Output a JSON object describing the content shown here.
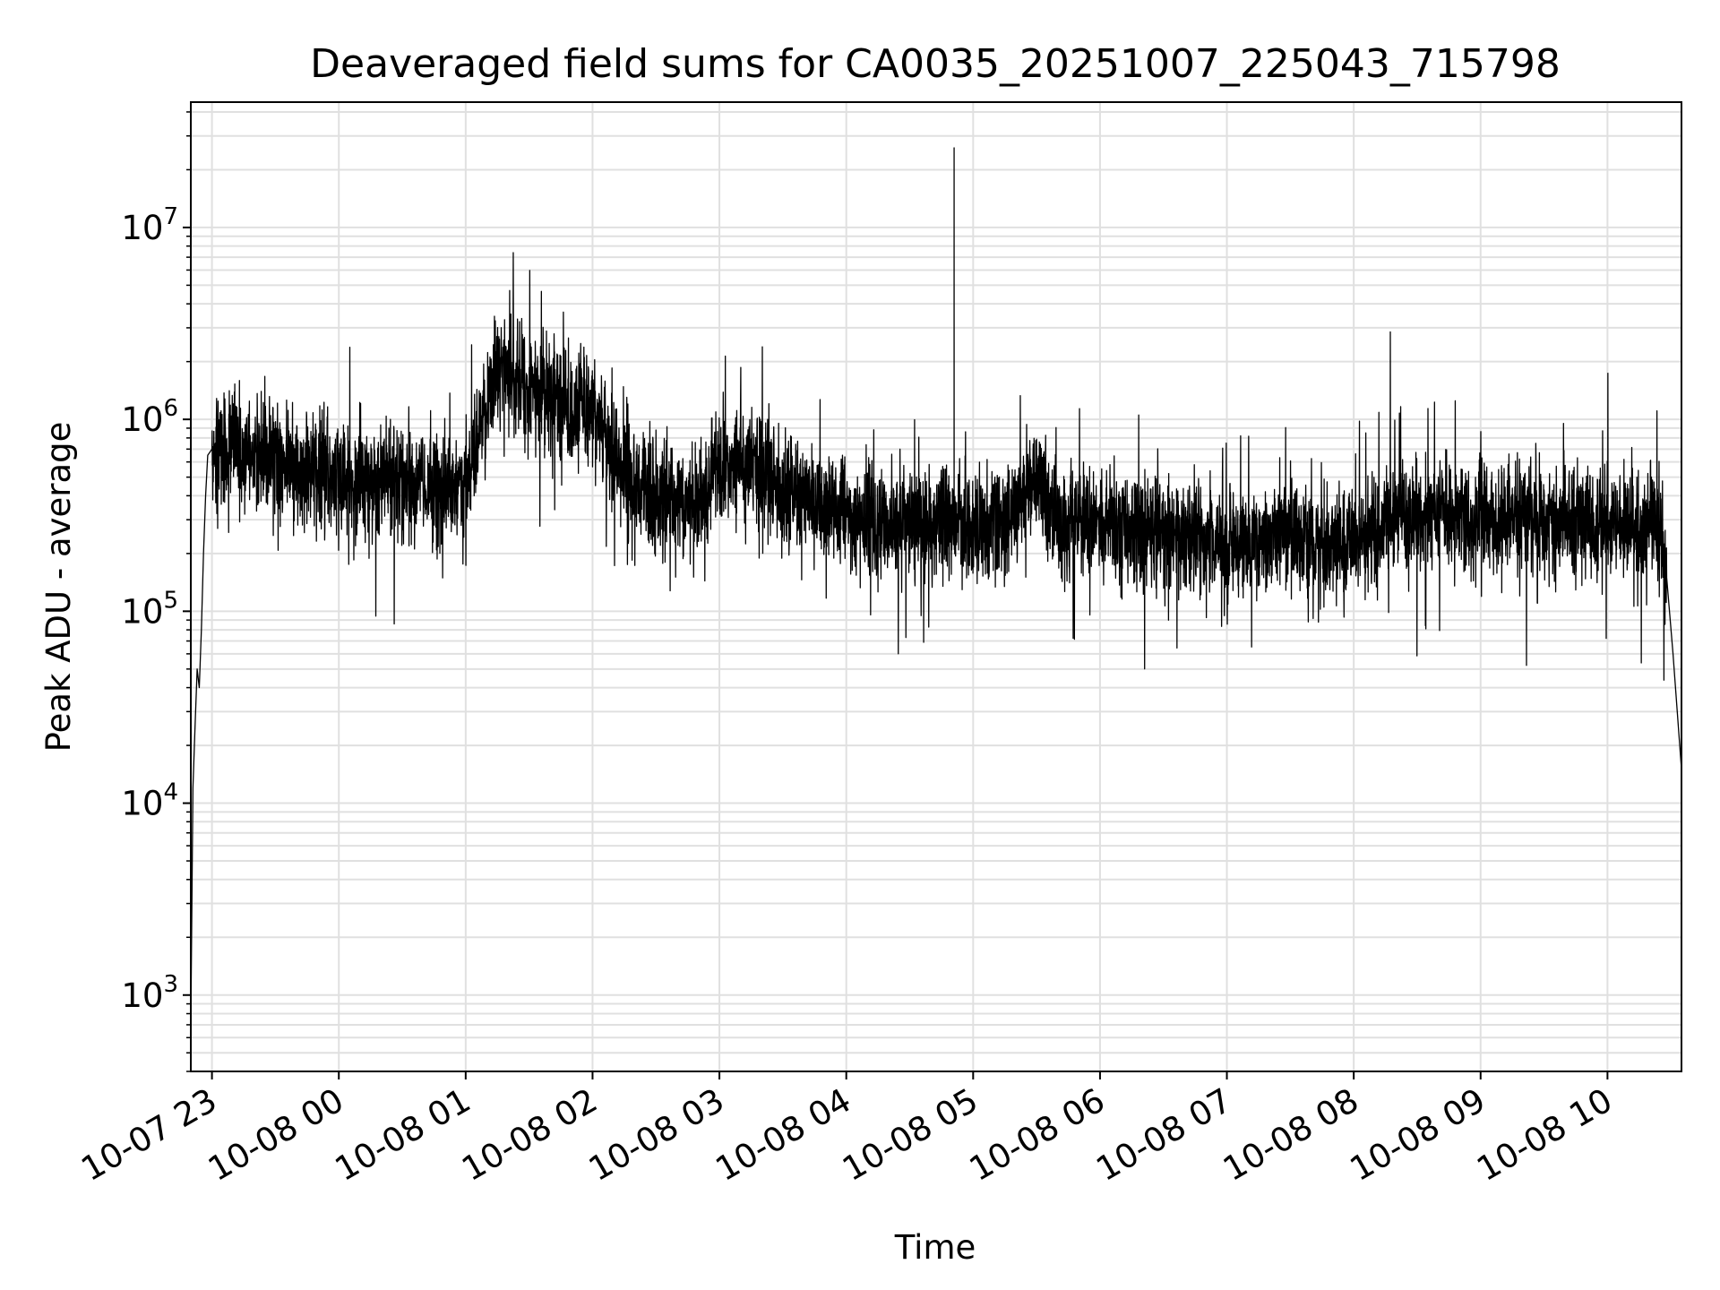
{
  "chart_data": {
    "type": "line",
    "title": "Deaveraged field sums for CA0035_20251007_225043_715798",
    "xlabel": "Time",
    "ylabel": "Peak ADU - average",
    "yscale": "log",
    "ylim": [
      400,
      45000000
    ],
    "xlim": [
      "2025-10-07 22:50",
      "2025-10-08 10:35"
    ],
    "grid": true,
    "minor_grid": true,
    "line_color": "#000000",
    "grid_color": "#e0e0e0",
    "x_ticks": [
      {
        "value": "2025-10-07 23:00",
        "label": "10-07 23"
      },
      {
        "value": "2025-10-08 00:00",
        "label": "10-08 00"
      },
      {
        "value": "2025-10-08 01:00",
        "label": "10-08 01"
      },
      {
        "value": "2025-10-08 02:00",
        "label": "10-08 02"
      },
      {
        "value": "2025-10-08 03:00",
        "label": "10-08 03"
      },
      {
        "value": "2025-10-08 04:00",
        "label": "10-08 04"
      },
      {
        "value": "2025-10-08 05:00",
        "label": "10-08 05"
      },
      {
        "value": "2025-10-08 06:00",
        "label": "10-08 06"
      },
      {
        "value": "2025-10-08 07:00",
        "label": "10-08 07"
      },
      {
        "value": "2025-10-08 08:00",
        "label": "10-08 08"
      },
      {
        "value": "2025-10-08 09:00",
        "label": "10-08 09"
      },
      {
        "value": "2025-10-08 10:00",
        "label": "10-08 10"
      }
    ],
    "y_ticks": [
      {
        "value": 1000,
        "base": "10",
        "exp": "3"
      },
      {
        "value": 10000,
        "base": "10",
        "exp": "4"
      },
      {
        "value": 100000,
        "base": "10",
        "exp": "5"
      },
      {
        "value": 1000000,
        "base": "10",
        "exp": "6"
      },
      {
        "value": 10000000,
        "base": "10",
        "exp": "7"
      }
    ],
    "series": [
      {
        "x": [
          "2025-10-07 22:50",
          "2025-10-07 22:51",
          "2025-10-07 22:52",
          "2025-10-07 22:53",
          "2025-10-07 22:54",
          "2025-10-07 22:55",
          "2025-10-07 22:56",
          "2025-10-07 22:57",
          "2025-10-07 22:58",
          "2025-10-07 23:00",
          "2025-10-07 23:15",
          "2025-10-07 23:30",
          "2025-10-07 23:45",
          "2025-10-08 00:00",
          "2025-10-08 00:15",
          "2025-10-08 00:30",
          "2025-10-08 00:45",
          "2025-10-08 01:00",
          "2025-10-08 01:15",
          "2025-10-08 01:30",
          "2025-10-08 01:45",
          "2025-10-08 02:00",
          "2025-10-08 02:15",
          "2025-10-08 02:30",
          "2025-10-08 02:45",
          "2025-10-08 03:00",
          "2025-10-08 03:15",
          "2025-10-08 03:30",
          "2025-10-08 03:45",
          "2025-10-08 04:00",
          "2025-10-08 04:15",
          "2025-10-08 04:30",
          "2025-10-08 04:45",
          "2025-10-08 05:00",
          "2025-10-08 05:15",
          "2025-10-08 05:30",
          "2025-10-08 05:45",
          "2025-10-08 06:00",
          "2025-10-08 06:15",
          "2025-10-08 06:30",
          "2025-10-08 06:45",
          "2025-10-08 07:00",
          "2025-10-08 07:15",
          "2025-10-08 07:30",
          "2025-10-08 07:45",
          "2025-10-08 08:00",
          "2025-10-08 08:15",
          "2025-10-08 08:30",
          "2025-10-08 08:45",
          "2025-10-08 09:00",
          "2025-10-08 09:15",
          "2025-10-08 09:30",
          "2025-10-08 09:45",
          "2025-10-08 10:00",
          "2025-10-08 10:15",
          "2025-10-08 10:25",
          "2025-10-08 10:28",
          "2025-10-08 10:31",
          "2025-10-08 10:33",
          "2025-10-08 10:35"
        ],
        "y": [
          700,
          12000,
          25000,
          50000,
          40000,
          80000,
          200000,
          400000,
          650000,
          700000,
          650000,
          600000,
          550000,
          500000,
          450000,
          480000,
          420000,
          450000,
          1800000,
          1500000,
          1200000,
          1100000,
          500000,
          400000,
          350000,
          550000,
          650000,
          400000,
          380000,
          320000,
          300000,
          280000,
          310000,
          250000,
          300000,
          500000,
          280000,
          300000,
          280000,
          260000,
          250000,
          220000,
          230000,
          240000,
          230000,
          220000,
          300000,
          320000,
          330000,
          300000,
          320000,
          310000,
          300000,
          280000,
          300000,
          280000,
          150000,
          60000,
          30000,
          15000
        ]
      }
    ],
    "annotations": [
      {
        "x": "2025-10-08 04:51",
        "y": 26000000,
        "text": ""
      }
    ]
  }
}
